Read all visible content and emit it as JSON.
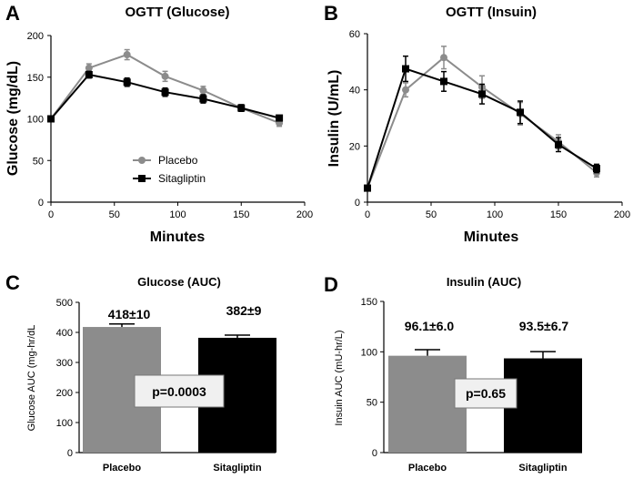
{
  "panels": {
    "a": "A",
    "b": "B",
    "c": "C",
    "d": "D"
  },
  "colors": {
    "placebo": "#8c8c8c",
    "sitagliptin": "#000000",
    "pbox_fill": "#f0f0f0"
  },
  "chart_data": [
    {
      "id": "glucose-line",
      "type": "line",
      "title": "OGTT (Glucose)",
      "xlabel": "Minutes",
      "ylabel": "Glucose  (mg/dL)",
      "xlim": [
        0,
        200
      ],
      "ylim": [
        0,
        200
      ],
      "xticks": [
        0,
        50,
        100,
        150,
        200
      ],
      "yticks": [
        0,
        50,
        100,
        150,
        200
      ],
      "x": [
        0,
        30,
        60,
        90,
        120,
        150,
        180
      ],
      "legend": {
        "position": "center-left",
        "entries": [
          "Placebo",
          "Sitagliptin"
        ]
      },
      "series": [
        {
          "name": "Placebo",
          "values": [
            100,
            161,
            177,
            151,
            134,
            113,
            95
          ],
          "errors": [
            3,
            5,
            6,
            6,
            5,
            4,
            4
          ]
        },
        {
          "name": "Sitagliptin",
          "values": [
            100,
            153,
            144,
            132,
            124,
            113,
            101
          ],
          "errors": [
            3,
            4,
            5,
            5,
            5,
            4,
            3
          ]
        }
      ]
    },
    {
      "id": "insulin-line",
      "type": "line",
      "title": "OGTT (Insuin)",
      "xlabel": "Minutes",
      "ylabel": "Insulin (U/mL)",
      "xlim": [
        0,
        200
      ],
      "ylim": [
        0,
        60
      ],
      "xticks": [
        0,
        50,
        100,
        150,
        200
      ],
      "yticks": [
        0,
        20,
        40,
        60
      ],
      "x": [
        0,
        30,
        60,
        90,
        120,
        150,
        180
      ],
      "series": [
        {
          "name": "Placebo",
          "values": [
            5,
            40,
            51.5,
            41,
            31.5,
            21.5,
            10.5
          ],
          "errors": [
            1,
            2.5,
            4,
            4,
            4,
            2.5,
            1.5
          ]
        },
        {
          "name": "Sitagliptin",
          "values": [
            5,
            47.5,
            43,
            38.5,
            32,
            20.5,
            12
          ],
          "errors": [
            1,
            4.5,
            3.5,
            3.5,
            4,
            2.5,
            1.5
          ]
        }
      ]
    },
    {
      "id": "glucose-auc",
      "type": "bar",
      "title": "Glucose (AUC)",
      "ylabel": "Glucose AUC (mg-hr/dL",
      "ylim": [
        0,
        500
      ],
      "yticks": [
        0,
        100,
        200,
        300,
        400,
        500
      ],
      "categories": [
        "Placebo",
        "Sitagliptin"
      ],
      "values": [
        418,
        382
      ],
      "errors": [
        10,
        9
      ],
      "value_labels": [
        "418±10",
        "382±9"
      ],
      "annotation": "p=0.0003"
    },
    {
      "id": "insulin-auc",
      "type": "bar",
      "title": "Insulin (AUC)",
      "ylabel": "Insuin AUC (mU-hr/L)",
      "ylim": [
        0,
        150
      ],
      "yticks": [
        0,
        50,
        100,
        150
      ],
      "categories": [
        "Placebo",
        "Sitagliptin"
      ],
      "values": [
        96.1,
        93.5
      ],
      "errors": [
        6.0,
        6.7
      ],
      "value_labels": [
        "96.1±6.0",
        "93.5±6.7"
      ],
      "annotation": "p=0.65"
    }
  ]
}
